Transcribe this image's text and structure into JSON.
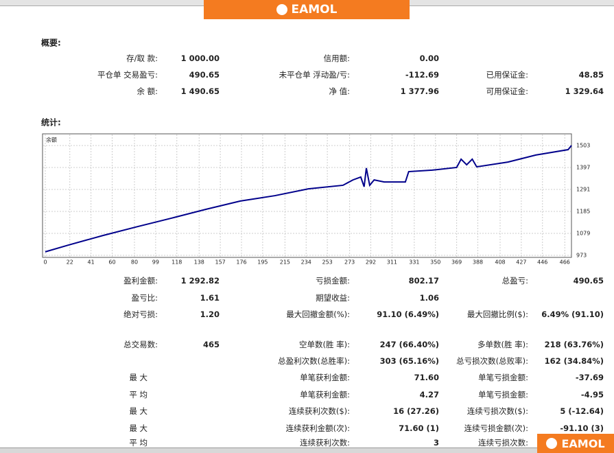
{
  "header": {
    "logo": "EAMOL"
  },
  "summary": {
    "title": "概要:",
    "rows": [
      [
        "存/取 款:",
        "1 000.00",
        "信用额:",
        "0.00",
        null,
        null
      ],
      [
        "平仓单 交易盈亏:",
        "490.65",
        "未平仓单 浮动盈/亏:",
        "-112.69",
        "已用保证金:",
        "48.85"
      ],
      [
        "余 额:",
        "1 490.65",
        "净 值:",
        "1 377.96",
        "可用保证金:",
        "1 329.64"
      ]
    ]
  },
  "stats_title": "统计:",
  "chart_data": {
    "type": "line",
    "label": "余额",
    "x": [
      0,
      21,
      52,
      83,
      113,
      144,
      175,
      206,
      236,
      267,
      276,
      283,
      286,
      288,
      291,
      295,
      304,
      323,
      326,
      347,
      369,
      373,
      378,
      383,
      387,
      415,
      440,
      469,
      472
    ],
    "series": [
      {
        "name": "余额",
        "color": "#00008b",
        "values": [
          990,
          1023,
          1069,
          1112,
          1152,
          1195,
          1235,
          1261,
          1294,
          1311,
          1337,
          1351,
          1304,
          1394,
          1311,
          1337,
          1327,
          1327,
          1377,
          1384,
          1397,
          1437,
          1410,
          1437,
          1400,
          1423,
          1457,
          1483,
          1503
        ]
      }
    ],
    "xlim": [
      0,
      472
    ],
    "xticks": [
      0,
      22,
      41,
      60,
      80,
      99,
      118,
      138,
      157,
      176,
      195,
      215,
      234,
      253,
      273,
      292,
      311,
      331,
      350,
      369,
      388,
      408,
      427,
      446,
      466
    ],
    "ylim": [
      973,
      1503
    ],
    "yticks": [
      973,
      1079,
      1185,
      1291,
      1397,
      1503
    ],
    "grid": true
  },
  "stats": {
    "rows": [
      [
        "盈利金额:",
        "1 292.82",
        "亏损金额:",
        "802.17",
        "总盈亏:",
        "490.65"
      ],
      [
        "盈亏比:",
        "1.61",
        "期望收益:",
        "1.06",
        null,
        null
      ],
      [
        "绝对亏损:",
        "1.20",
        "最大回撤金额(%):",
        "91.10 (6.49%)",
        "最大回撤比例($):",
        "6.49% (91.10)"
      ],
      [
        "总交易数:",
        "465",
        "空单数(胜 率):",
        "247 (66.40%)",
        "多单数(胜 率):",
        "218 (63.76%)"
      ],
      [
        null,
        null,
        "总盈利次数(总胜率):",
        "303 (65.16%)",
        "总亏损次数(总败率):",
        "162 (34.84%)"
      ],
      [
        "最 大",
        null,
        "单笔获利金额:",
        "71.60",
        "单笔亏损金额:",
        "-37.69"
      ],
      [
        "平 均",
        null,
        "单笔获利金额:",
        "4.27",
        "单笔亏损金额:",
        "-4.95"
      ],
      [
        "最 大",
        null,
        "连续获利次数($):",
        "16 (27.26)",
        "连续亏损次数($):",
        "5 (-12.64)"
      ],
      [
        "最 大",
        null,
        "连续获利金额(次):",
        "71.60 (1)",
        "连续亏损金额(次):",
        "-91.10 (3)"
      ],
      [
        "平 均",
        null,
        "连续获利次数:",
        "3",
        "连续亏损次数:",
        null
      ]
    ]
  }
}
